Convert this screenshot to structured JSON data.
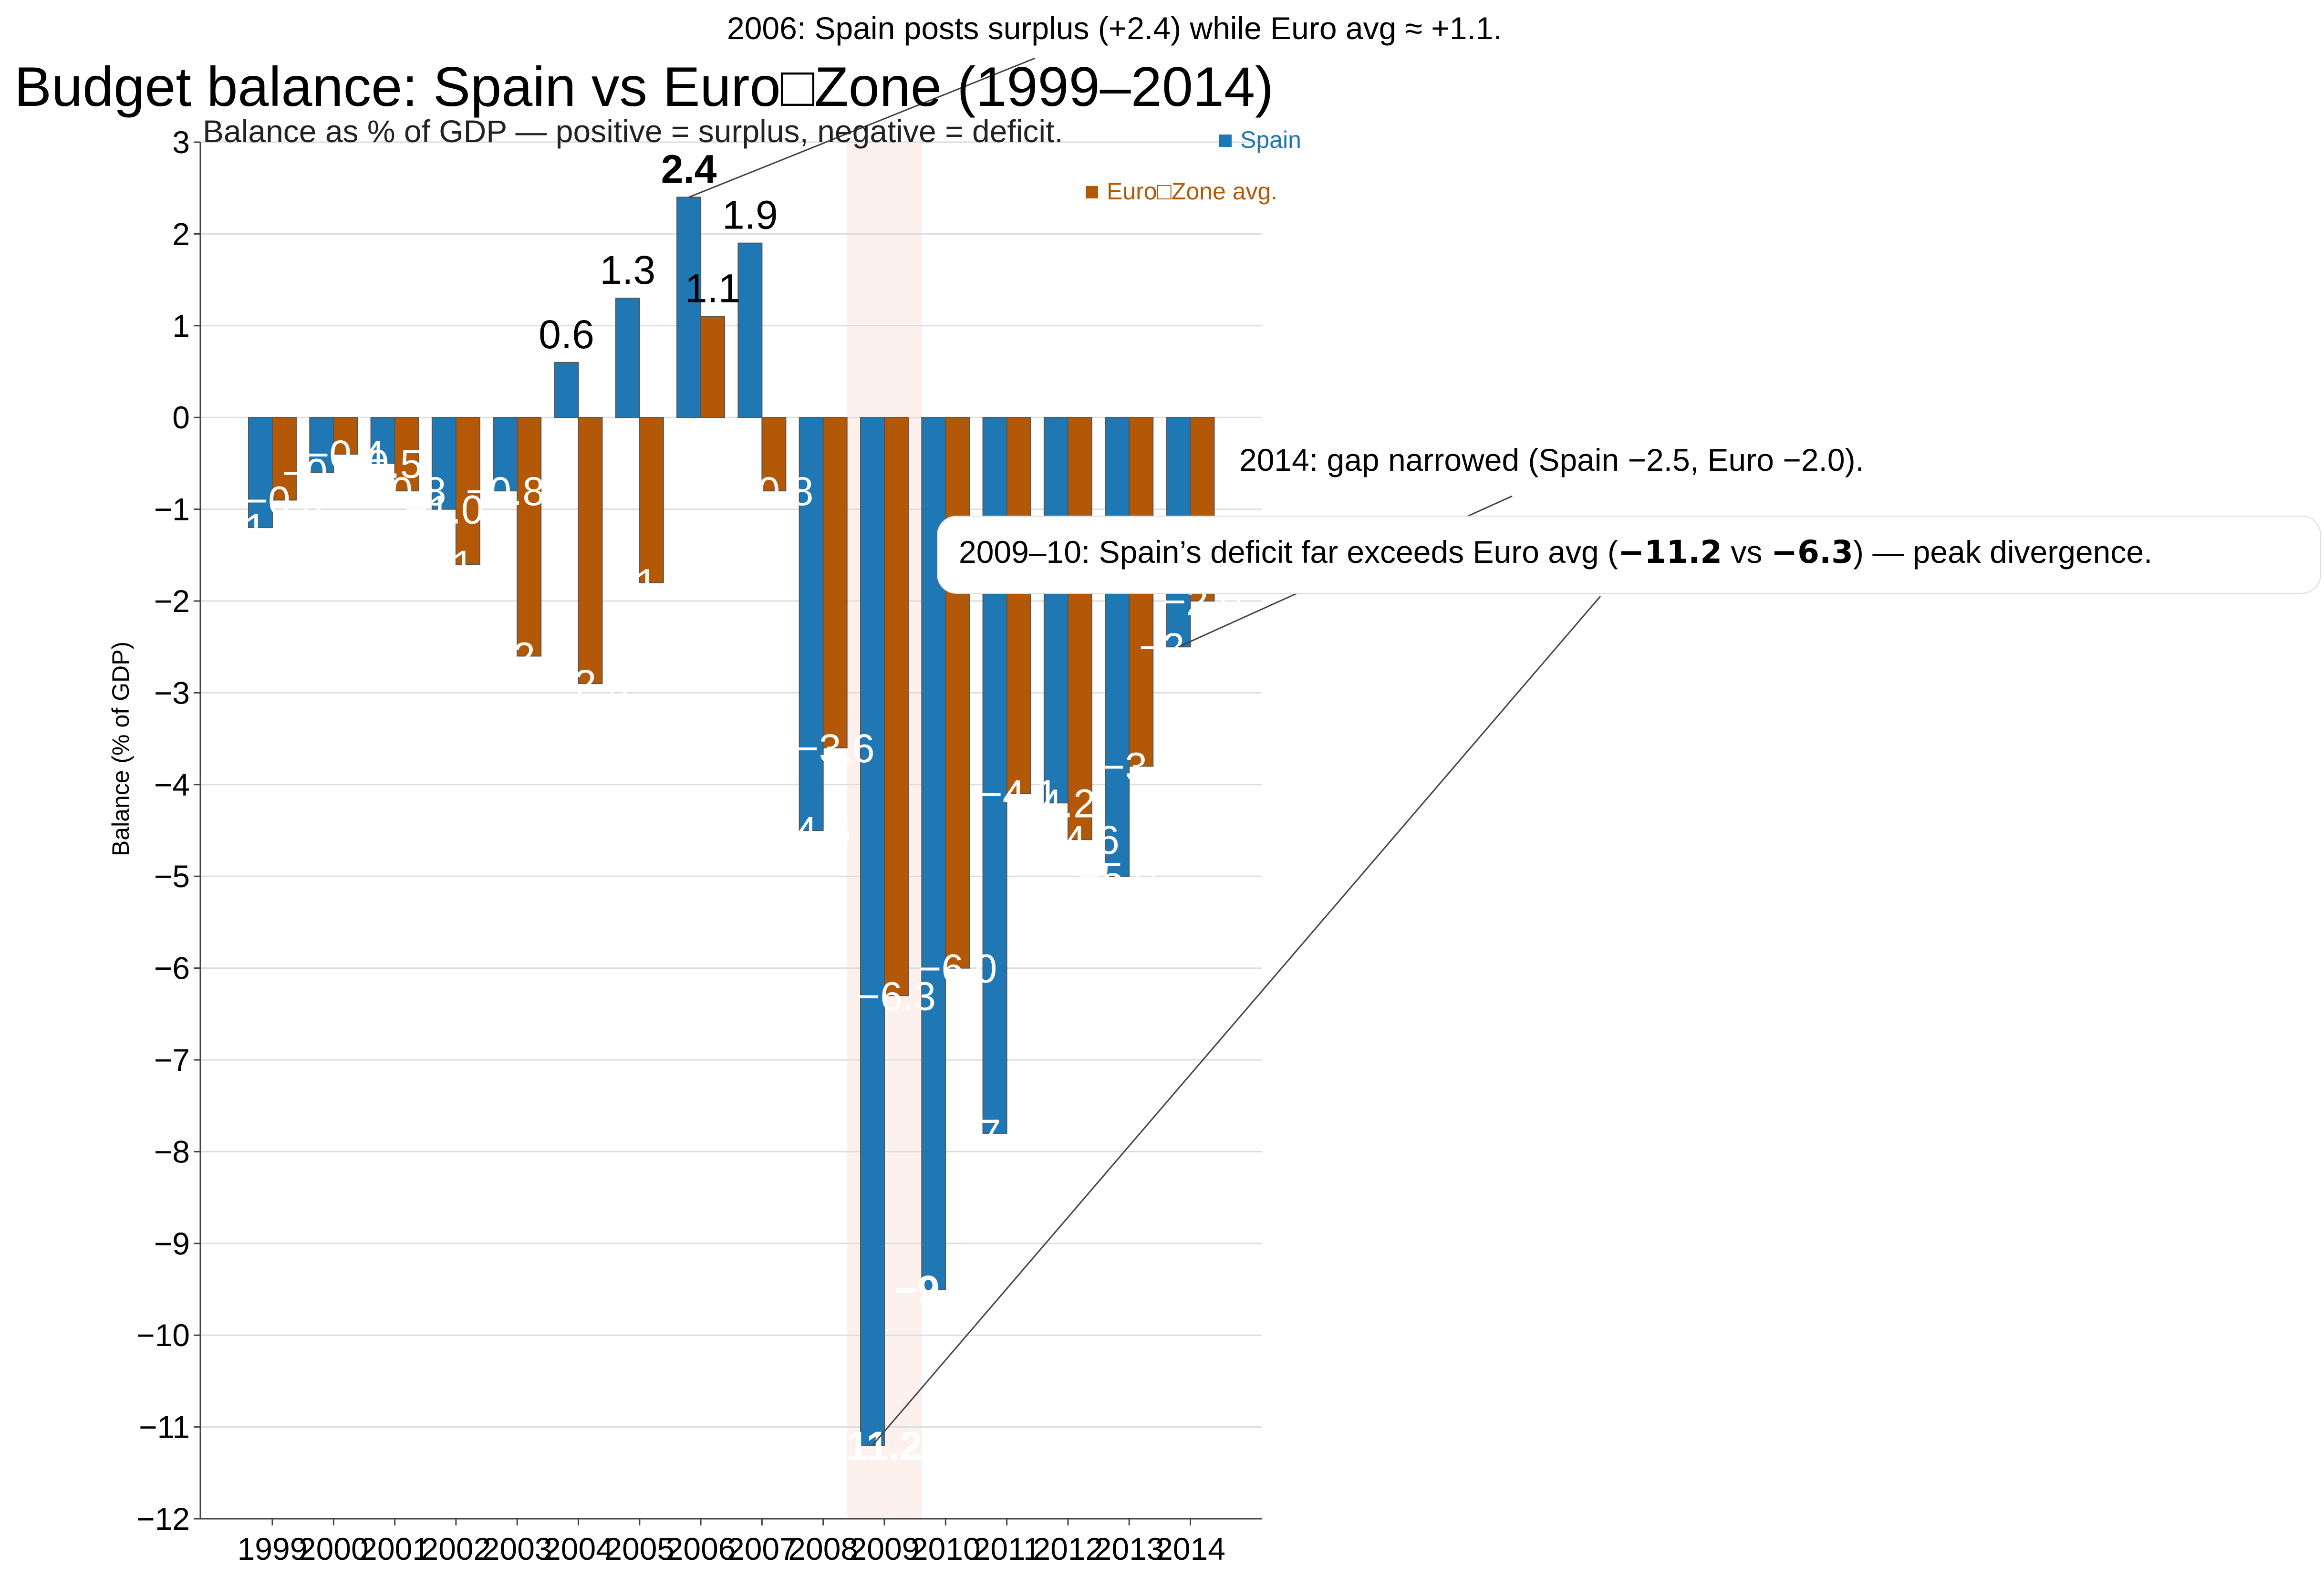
{
  "colors": {
    "spain": "#1f77b4",
    "euro": "#b35806",
    "grid": "#dddddd",
    "highlight": "#fdf1ee",
    "axis": "#444444"
  },
  "chart_data": {
    "type": "bar",
    "title": "Budget balance: Spain vs Euro□Zone (1999–2014)",
    "subtitle": "Balance as % of GDP — positive = surplus, negative = deficit.",
    "ylabel": "Balance (% of GDP)",
    "xlabel": "",
    "ylim": [
      -12,
      3
    ],
    "yticks": [
      "3",
      "2",
      "1",
      "0",
      "−1",
      "−2",
      "−3",
      "−4",
      "−5",
      "−6",
      "−7",
      "−8",
      "−9",
      "−10",
      "−11",
      "−12"
    ],
    "grid": true,
    "legend_position": "top-right",
    "categories": [
      "1999",
      "2000",
      "2001",
      "2002",
      "2003",
      "2004",
      "2005",
      "2006",
      "2007",
      "2008",
      "2009",
      "2010",
      "2011",
      "2012",
      "2013",
      "2014"
    ],
    "series": [
      {
        "name": "Spain",
        "values": [
          -1.2,
          -0.6,
          -0.5,
          -1.0,
          -0.8,
          0.6,
          1.3,
          2.4,
          1.9,
          -4.5,
          -11.2,
          -9.5,
          -7.8,
          -4.2,
          -5.0,
          -2.5
        ],
        "labels": [
          "−1.2",
          "−0.6",
          "−0.5",
          "−1.0",
          "−0.8",
          "0.6",
          "1.3",
          "2.4",
          "1.9",
          "−4.5",
          "−11.2",
          "−9.5",
          "−7.8",
          "−4.2",
          "−5.0",
          "−2.5"
        ]
      },
      {
        "name": "Euro□Zone avg.",
        "values": [
          -0.9,
          -0.4,
          -0.8,
          -1.6,
          -2.6,
          -2.9,
          -1.8,
          1.1,
          -0.8,
          -3.6,
          -6.3,
          -6.0,
          -4.1,
          -4.6,
          -3.8,
          -2.0
        ],
        "labels": [
          "−0.9",
          "−0.4",
          "−0.8",
          "−1.6",
          "−2.6",
          "−2.9",
          "−1.8",
          "1.1",
          "−0.8",
          "−3.6",
          "−6.3",
          "−6.0",
          "−4.1",
          "−4.6",
          "−3.8",
          "−2.0"
        ]
      }
    ],
    "highlight_category": "2009",
    "annotations": [
      {
        "text": "2006: Spain posts surplus (+2.4) while Euro avg ≈ +1.1.",
        "target_category": "2006",
        "target_value": 2.4
      },
      {
        "text": "2014: gap narrowed (Spain −2.5, Euro −2.0).",
        "target_category": "2014",
        "target_value": -2.5
      },
      {
        "pre": "2009–10: Spain’s deficit far exceeds Euro avg (",
        "bold1": "−11.2",
        "mid": " vs ",
        "bold2": "−6.3",
        "post": ") — peak divergence.",
        "target_category": "2009",
        "target_value": -11.2
      }
    ]
  }
}
